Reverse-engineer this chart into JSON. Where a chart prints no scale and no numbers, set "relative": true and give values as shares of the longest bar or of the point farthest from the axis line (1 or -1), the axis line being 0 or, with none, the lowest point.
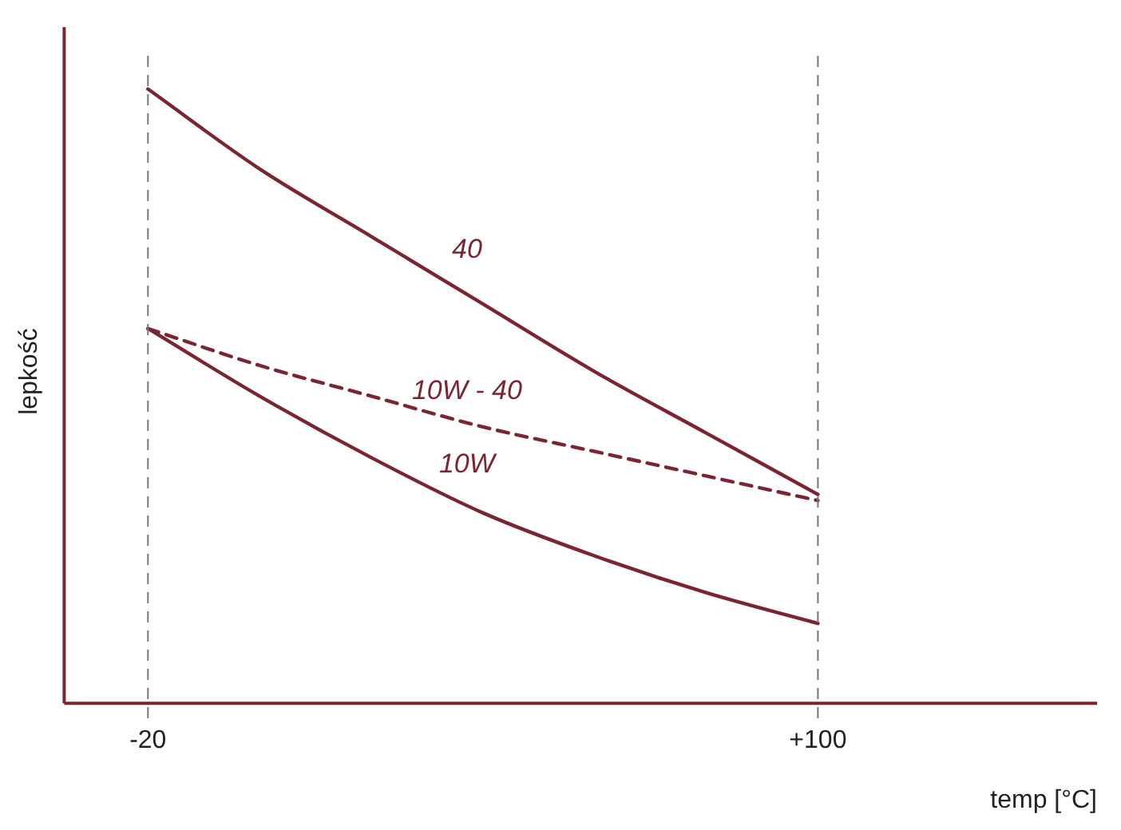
{
  "chart_data": {
    "type": "line",
    "relative": true,
    "xlabel": "temp [°C]",
    "ylabel": "lepkość",
    "xlim": [
      -35,
      150
    ],
    "xticks": [
      {
        "value": -20,
        "label": "-20"
      },
      {
        "value": 100,
        "label": "+100"
      }
    ],
    "x": [
      -20,
      0,
      20,
      40,
      60,
      80,
      100
    ],
    "series": [
      {
        "name": "40",
        "color": "#7a2530",
        "values": [
          1,
          0.87,
          0.76,
          0.65,
          0.54,
          0.44,
          0.34
        ],
        "line_style": "solid"
      },
      {
        "name": "10W - 40",
        "color": "#7a2530",
        "values": [
          0.61,
          0.55,
          0.5,
          0.45,
          0.41,
          0.37,
          0.33
        ],
        "line_style": "dashed"
      },
      {
        "name": "10W",
        "color": "#7a2530",
        "values": [
          0.61,
          0.5,
          0.4,
          0.31,
          0.24,
          0.18,
          0.13
        ],
        "line_style": "solid"
      }
    ],
    "ref_lines": [
      {
        "axis": "x",
        "value": -20,
        "color": "#777777",
        "line_style": "dashed"
      },
      {
        "axis": "x",
        "value": 100,
        "color": "#777777",
        "line_style": "dashed"
      }
    ],
    "grid": false,
    "legend": false,
    "marker": "none",
    "tick_labels": "x"
  }
}
